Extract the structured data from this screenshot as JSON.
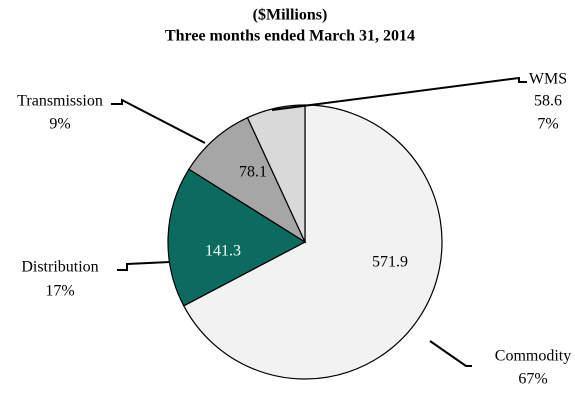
{
  "chart_data": {
    "type": "pie",
    "title": "($Millions)",
    "subtitle": "Three months ended March 31, 2014",
    "categories": [
      "Commodity",
      "Distribution",
      "Transmission",
      "WMS"
    ],
    "values": [
      571.9,
      141.3,
      78.1,
      58.6
    ],
    "percent_labels": [
      "67%",
      "17%",
      "9%",
      "7%"
    ],
    "colors": [
      "#f2f2f2",
      "#0b6b5f",
      "#a6a6a6",
      "#d9d9d9"
    ]
  }
}
